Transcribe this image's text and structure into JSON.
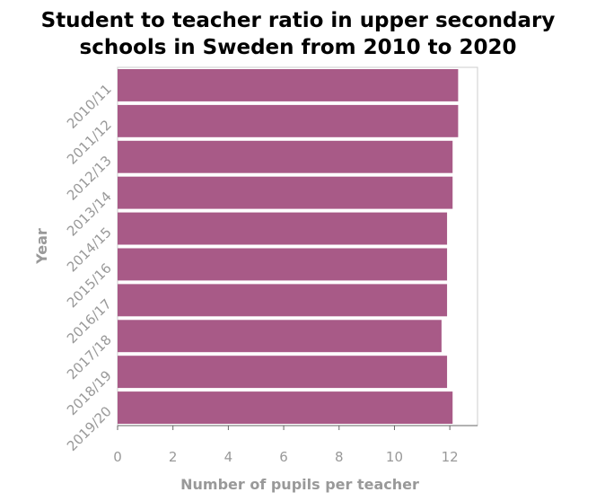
{
  "chart_data": {
    "type": "bar",
    "orientation": "horizontal",
    "title_lines": [
      "Student to teacher ratio in upper secondary",
      "schools in Sweden from 2010 to 2020"
    ],
    "xlabel": "Number of pupils per teacher",
    "ylabel": "Year",
    "categories": [
      "2010/11",
      "2011/12",
      "2012/13",
      "2013/14",
      "2014/15",
      "2015/16",
      "2016/17",
      "2017/18",
      "2018/19",
      "2019/20"
    ],
    "values": [
      12.3,
      12.3,
      12.1,
      12.1,
      11.9,
      11.9,
      11.9,
      11.7,
      11.9,
      12.1
    ],
    "xlim": [
      0,
      13
    ],
    "xticks": [
      "0",
      "2",
      "4",
      "6",
      "8",
      "10",
      "12"
    ],
    "bar_color": "#a85a87",
    "grid": false,
    "legend": "none"
  }
}
